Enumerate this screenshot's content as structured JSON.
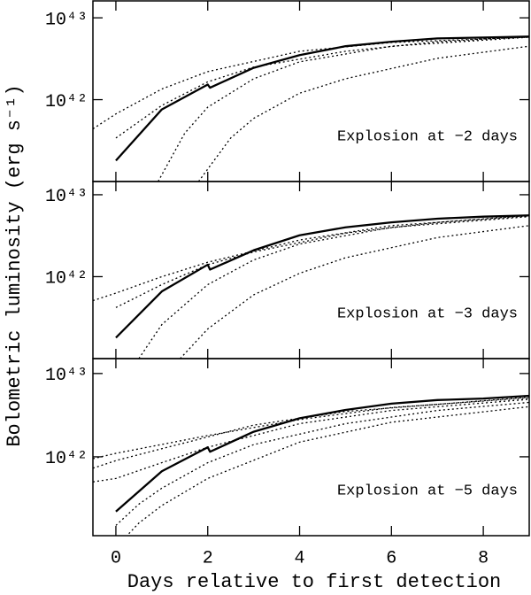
{
  "chart_data": [
    {
      "type": "line",
      "log": true,
      "xlim": [
        -0.5,
        9
      ],
      "ylim": [
        1e+41,
        1.61e+43
      ],
      "xticks": [
        0,
        2,
        4,
        6,
        8
      ],
      "xtick_labels": false,
      "yticks": [
        {
          "value": 1e+42,
          "label": "10⁴²"
        },
        {
          "value": 1e+43,
          "label": "10⁴³"
        }
      ],
      "annotation": "Explosion at −2 days",
      "series": [
        {
          "style": "solid",
          "color": "#000000",
          "x": [
            0,
            1,
            2,
            2.05,
            3,
            4,
            5,
            6,
            7,
            8,
            9
          ],
          "values": [
            1.8e+41,
            7.6e+41,
            1.53e+42,
            1.4e+42,
            2.45e+42,
            3.5e+42,
            4.5e+42,
            5.1e+42,
            5.6e+42,
            5.75e+42,
            5.9e+42
          ]
        },
        {
          "style": "dotted",
          "color": "#000000",
          "x": [
            -0.5,
            0,
            1,
            2,
            4,
            6,
            9
          ],
          "values": [
            4.4e+41,
            6.7e+41,
            1.35e+42,
            2.2e+42,
            3.9e+42,
            5e+42,
            5.8e+42
          ]
        },
        {
          "style": "dotted",
          "color": "#000000",
          "x": [
            0,
            1,
            2,
            3,
            5,
            7,
            9
          ],
          "values": [
            3.4e+41,
            8.5e+41,
            1.65e+42,
            2.5e+42,
            3.9e+42,
            5.1e+42,
            5.9e+42
          ]
        },
        {
          "style": "dotted",
          "color": "#000000",
          "x": [
            0.92,
            1.5,
            2,
            3,
            4,
            6,
            9
          ],
          "values": [
            1e+41,
            3.9e+41,
            8.1e+41,
            1.8e+42,
            2.9e+42,
            4.5e+42,
            5.8e+42
          ]
        },
        {
          "style": "dotted",
          "color": "#000000",
          "x": [
            1.8,
            2.5,
            3,
            4,
            5,
            7,
            9
          ],
          "values": [
            1e+41,
            3.4e+41,
            5.9e+41,
            1.2e+42,
            1.8e+42,
            3.2e+42,
            4.5e+42
          ]
        }
      ]
    },
    {
      "type": "line",
      "log": true,
      "xlim": [
        -0.5,
        9
      ],
      "ylim": [
        1e+41,
        1.45e+43
      ],
      "xticks": [
        0,
        2,
        4,
        6,
        8
      ],
      "xtick_labels": false,
      "yticks": [
        {
          "value": 1e+42,
          "label": "10⁴²"
        },
        {
          "value": 1e+43,
          "label": "10⁴³"
        }
      ],
      "annotation": "Explosion at −3 days",
      "ylabel": "Bolometric luminosity (erg s⁻¹)",
      "series": [
        {
          "style": "solid",
          "color": "#000000",
          "x": [
            0,
            1,
            2,
            2.05,
            3,
            4,
            5,
            6,
            7,
            8,
            9
          ],
          "values": [
            1.8e+41,
            6.6e+41,
            1.4e+42,
            1.22e+42,
            2.1e+42,
            3.2e+42,
            4e+42,
            4.6e+42,
            5.1e+42,
            5.4e+42,
            5.6e+42
          ]
        },
        {
          "style": "dotted",
          "color": "#000000",
          "x": [
            -0.5,
            0,
            1,
            2,
            4,
            6,
            9
          ],
          "values": [
            5.1e+41,
            6.3e+41,
            1e+42,
            1.5e+42,
            2.8e+42,
            4.2e+42,
            5.5e+42
          ]
        },
        {
          "style": "dotted",
          "color": "#000000",
          "x": [
            0,
            1,
            2,
            3,
            5,
            7,
            9
          ],
          "values": [
            4.2e+41,
            8e+41,
            1.4e+42,
            2e+42,
            3.4e+42,
            4.6e+42,
            5.6e+42
          ]
        },
        {
          "style": "dotted",
          "color": "#000000",
          "x": [
            0.5,
            1,
            2,
            3,
            4,
            6,
            9
          ],
          "values": [
            1e+41,
            2.6e+41,
            8e+41,
            1.6e+42,
            2.5e+42,
            4e+42,
            5.4e+42
          ]
        },
        {
          "style": "dotted",
          "color": "#000000",
          "x": [
            1.4,
            2,
            3,
            4,
            5,
            7,
            9
          ],
          "values": [
            1e+41,
            2.3e+41,
            6e+41,
            1.1e+42,
            1.7e+42,
            3e+42,
            4.2e+42
          ]
        }
      ]
    },
    {
      "type": "line",
      "log": true,
      "xlim": [
        -0.5,
        9
      ],
      "ylim": [
        1.13e+41,
        1.51e+43
      ],
      "xticks": [
        0,
        2,
        4,
        6,
        8
      ],
      "xtick_labels": true,
      "yticks": [
        {
          "value": 1e+42,
          "label": "10⁴²"
        },
        {
          "value": 1e+43,
          "label": "10⁴³"
        }
      ],
      "annotation": "Explosion at −5 days",
      "xlabel": "Days relative to first detection",
      "series": [
        {
          "style": "solid",
          "color": "#000000",
          "x": [
            0,
            1,
            2,
            2.05,
            3,
            4,
            5,
            6,
            7,
            8,
            9
          ],
          "values": [
            2.2e+41,
            6.7e+41,
            1.3e+42,
            1.15e+42,
            2e+42,
            2.9e+42,
            3.65e+42,
            4.35e+42,
            4.8e+42,
            5e+42,
            5.4e+42
          ]
        },
        {
          "style": "dotted",
          "color": "#000000",
          "x": [
            -0.5,
            0,
            2,
            4,
            6,
            9
          ],
          "values": [
            9.5e+41,
            1.1e+42,
            1.8e+42,
            2.8e+42,
            3.9e+42,
            5.1e+42
          ]
        },
        {
          "style": "dotted",
          "color": "#000000",
          "x": [
            -0.5,
            0,
            1,
            3,
            5,
            9
          ],
          "values": [
            7.3e+41,
            9e+41,
            1.25e+42,
            2.4e+42,
            3.5e+42,
            5.2e+42
          ]
        },
        {
          "style": "dotted",
          "color": "#000000",
          "x": [
            -0.5,
            0,
            1,
            2,
            4,
            6,
            9
          ],
          "values": [
            5e+41,
            5.5e+41,
            8.5e+41,
            1.3e+42,
            2.5e+42,
            3.6e+42,
            4.9e+42
          ]
        },
        {
          "style": "dotted",
          "color": "#000000",
          "x": [
            0,
            0.5,
            1,
            2,
            3,
            5,
            7,
            9
          ],
          "values": [
            1.5e+41,
            2.7e+41,
            4.2e+41,
            8.5e+41,
            1.4e+42,
            2.5e+42,
            3.6e+42,
            4.5e+42
          ]
        },
        {
          "style": "dotted",
          "color": "#000000",
          "x": [
            0.15,
            0.5,
            1,
            2,
            4,
            6,
            9
          ],
          "values": [
            1e+41,
            1.6e+41,
            2.6e+41,
            5.5e+41,
            1.5e+42,
            2.6e+42,
            4e+42
          ]
        }
      ]
    }
  ]
}
